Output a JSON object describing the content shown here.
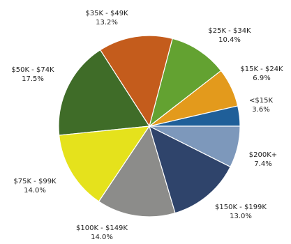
{
  "chart_data": {
    "type": "pie",
    "title": "",
    "start_angle_deg": 0,
    "direction": "counterclockwise",
    "slices": [
      {
        "label": "<$15K",
        "value": 3.6,
        "value_label": "3.6%",
        "color": "#1f5f99"
      },
      {
        "label": "$15K - $24K",
        "value": 6.9,
        "value_label": "6.9%",
        "color": "#e39a1c"
      },
      {
        "label": "$25K - $34K",
        "value": 10.4,
        "value_label": "10.4%",
        "color": "#63a231"
      },
      {
        "label": "$35K - $49K",
        "value": 13.2,
        "value_label": "13.2%",
        "color": "#c45c1c"
      },
      {
        "label": "$50K - $74K",
        "value": 17.5,
        "value_label": "17.5%",
        "color": "#3f6c28"
      },
      {
        "label": "$75K - $99K",
        "value": 14.0,
        "value_label": "14.0%",
        "color": "#e5e21c"
      },
      {
        "label": "$100K - $149K",
        "value": 14.0,
        "value_label": "14.0%",
        "color": "#8c8c8a"
      },
      {
        "label": "$150K - $199K",
        "value": 13.0,
        "value_label": "13.0%",
        "color": "#2f446b"
      },
      {
        "label": "$200K+",
        "value": 7.4,
        "value_label": "7.4%",
        "color": "#7d98bb"
      }
    ]
  }
}
